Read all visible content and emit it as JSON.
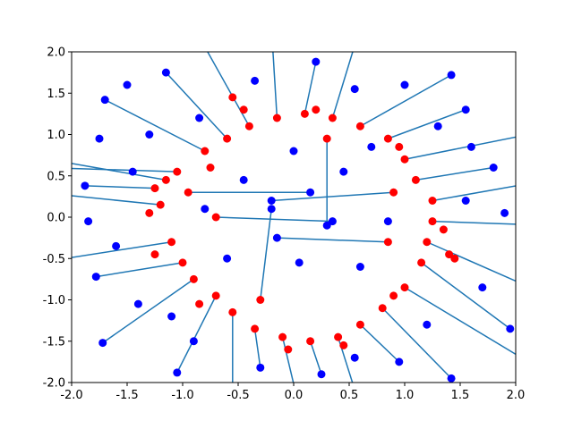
{
  "chart_data": {
    "type": "scatter",
    "title": "",
    "xlabel": "",
    "ylabel": "",
    "xlim": [
      -2.0,
      2.0
    ],
    "ylim": [
      -2.0,
      2.0
    ],
    "grid": false,
    "x_ticks": [
      "-2.0",
      "-1.5",
      "-1.0",
      "-0.5",
      "0.0",
      "0.5",
      "1.0",
      "1.5",
      "2.0"
    ],
    "y_ticks": [
      "-2.0",
      "-1.5",
      "-1.0",
      "-0.5",
      "0.0",
      "0.5",
      "1.0",
      "1.5",
      "2.0"
    ],
    "colors": {
      "lines": "#1f77b4",
      "inner_points": "#ff0000",
      "outer_points": "#0000ff"
    },
    "series": [
      {
        "role": "line-segments from red points to blue points",
        "segments": [
          {
            "from": [
              -1.15,
              0.45
            ],
            "to": [
              -2.3,
              0.72
            ]
          },
          {
            "from": [
              -1.25,
              0.35
            ],
            "to": [
              -1.88,
              0.38
            ]
          },
          {
            "from": [
              -1.05,
              0.55
            ],
            "to": [
              -2.25,
              0.6
            ]
          },
          {
            "from": [
              -1.2,
              0.15
            ],
            "to": [
              -2.3,
              0.3
            ]
          },
          {
            "from": [
              -1.1,
              -0.3
            ],
            "to": [
              -2.3,
              -0.55
            ]
          },
          {
            "from": [
              -1.0,
              -0.55
            ],
            "to": [
              -1.78,
              -0.72
            ]
          },
          {
            "from": [
              -0.9,
              -0.75
            ],
            "to": [
              -1.72,
              -1.52
            ]
          },
          {
            "from": [
              -0.7,
              -0.95
            ],
            "to": [
              -1.05,
              -1.88
            ]
          },
          {
            "from": [
              -0.55,
              -1.15
            ],
            "to": [
              -0.55,
              -2.3
            ]
          },
          {
            "from": [
              -0.35,
              -1.35
            ],
            "to": [
              -0.3,
              -1.82
            ]
          },
          {
            "from": [
              -0.1,
              -1.45
            ],
            "to": [
              0.05,
              -2.3
            ]
          },
          {
            "from": [
              0.15,
              -1.5
            ],
            "to": [
              0.25,
              -1.9
            ]
          },
          {
            "from": [
              0.4,
              -1.45
            ],
            "to": [
              0.6,
              -2.3
            ]
          },
          {
            "from": [
              0.6,
              -1.3
            ],
            "to": [
              0.95,
              -1.75
            ]
          },
          {
            "from": [
              0.8,
              -1.1
            ],
            "to": [
              1.42,
              -1.95
            ]
          },
          {
            "from": [
              1.0,
              -0.85
            ],
            "to": [
              2.3,
              -1.9
            ]
          },
          {
            "from": [
              1.15,
              -0.55
            ],
            "to": [
              1.95,
              -1.35
            ]
          },
          {
            "from": [
              1.2,
              -0.3
            ],
            "to": [
              2.3,
              -0.95
            ]
          },
          {
            "from": [
              1.25,
              -0.05
            ],
            "to": [
              2.3,
              -0.1
            ]
          },
          {
            "from": [
              1.25,
              0.2
            ],
            "to": [
              2.3,
              0.45
            ]
          },
          {
            "from": [
              1.1,
              0.45
            ],
            "to": [
              1.8,
              0.6
            ]
          },
          {
            "from": [
              1.0,
              0.7
            ],
            "to": [
              2.3,
              1.05
            ]
          },
          {
            "from": [
              0.85,
              0.95
            ],
            "to": [
              1.55,
              1.3
            ]
          },
          {
            "from": [
              0.6,
              1.1
            ],
            "to": [
              1.42,
              1.72
            ]
          },
          {
            "from": [
              0.35,
              1.2
            ],
            "to": [
              0.6,
              2.3
            ]
          },
          {
            "from": [
              0.1,
              1.25
            ],
            "to": [
              0.2,
              1.88
            ]
          },
          {
            "from": [
              -0.15,
              1.2
            ],
            "to": [
              -0.2,
              2.3
            ]
          },
          {
            "from": [
              -0.4,
              1.1
            ],
            "to": [
              -0.9,
              2.3
            ]
          },
          {
            "from": [
              -0.6,
              0.95
            ],
            "to": [
              -1.15,
              1.75
            ]
          },
          {
            "from": [
              -0.8,
              0.8
            ],
            "to": [
              -1.7,
              1.42
            ]
          },
          {
            "from": [
              -0.95,
              0.3
            ],
            "to": [
              0.15,
              0.3
            ]
          },
          {
            "from": [
              -0.7,
              0.0
            ],
            "to": [
              0.35,
              -0.05
            ]
          },
          {
            "from": [
              0.9,
              0.3
            ],
            "to": [
              -0.2,
              0.2
            ]
          },
          {
            "from": [
              0.85,
              -0.3
            ],
            "to": [
              -0.15,
              -0.25
            ]
          },
          {
            "from": [
              0.3,
              0.95
            ],
            "to": [
              0.3,
              -0.1
            ]
          },
          {
            "from": [
              -0.3,
              -1.0
            ],
            "to": [
              -0.2,
              0.1
            ]
          }
        ]
      },
      {
        "role": "inner points (red)",
        "points": [
          [
            -1.15,
            0.45
          ],
          [
            -1.25,
            0.35
          ],
          [
            -1.05,
            0.55
          ],
          [
            -1.2,
            0.15
          ],
          [
            -1.1,
            -0.3
          ],
          [
            -1.0,
            -0.55
          ],
          [
            -0.9,
            -0.75
          ],
          [
            -0.7,
            -0.95
          ],
          [
            -0.55,
            -1.15
          ],
          [
            -0.35,
            -1.35
          ],
          [
            -0.1,
            -1.45
          ],
          [
            0.15,
            -1.5
          ],
          [
            0.4,
            -1.45
          ],
          [
            0.6,
            -1.3
          ],
          [
            0.8,
            -1.1
          ],
          [
            1.0,
            -0.85
          ],
          [
            1.15,
            -0.55
          ],
          [
            1.2,
            -0.3
          ],
          [
            1.25,
            -0.05
          ],
          [
            1.25,
            0.2
          ],
          [
            1.1,
            0.45
          ],
          [
            1.0,
            0.7
          ],
          [
            0.85,
            0.95
          ],
          [
            0.6,
            1.1
          ],
          [
            0.35,
            1.2
          ],
          [
            0.1,
            1.25
          ],
          [
            -0.15,
            1.2
          ],
          [
            -0.4,
            1.1
          ],
          [
            -0.6,
            0.95
          ],
          [
            -0.8,
            0.8
          ],
          [
            -0.95,
            0.3
          ],
          [
            -0.7,
            0.0
          ],
          [
            0.9,
            0.3
          ],
          [
            0.85,
            -0.3
          ],
          [
            0.3,
            0.95
          ],
          [
            -0.3,
            -1.0
          ],
          [
            -0.55,
            1.45
          ],
          [
            -0.45,
            1.3
          ],
          [
            0.2,
            1.3
          ],
          [
            0.95,
            0.85
          ],
          [
            1.35,
            -0.15
          ],
          [
            1.45,
            -0.5
          ],
          [
            1.4,
            -0.45
          ],
          [
            -1.25,
            -0.45
          ],
          [
            -0.85,
            -1.05
          ],
          [
            -0.05,
            -1.6
          ],
          [
            0.45,
            -1.55
          ],
          [
            0.9,
            -0.95
          ],
          [
            -1.3,
            0.05
          ],
          [
            -0.75,
            0.6
          ]
        ]
      },
      {
        "role": "outer points (blue)",
        "points": [
          [
            -1.88,
            0.38
          ],
          [
            -1.78,
            -0.72
          ],
          [
            -1.72,
            -1.52
          ],
          [
            -1.05,
            -1.88
          ],
          [
            -0.3,
            -1.82
          ],
          [
            0.25,
            -1.9
          ],
          [
            0.95,
            -1.75
          ],
          [
            1.42,
            -1.95
          ],
          [
            1.95,
            -1.35
          ],
          [
            1.8,
            0.6
          ],
          [
            1.55,
            1.3
          ],
          [
            1.42,
            1.72
          ],
          [
            0.2,
            1.88
          ],
          [
            -1.15,
            1.75
          ],
          [
            -1.7,
            1.42
          ],
          [
            0.15,
            0.3
          ],
          [
            0.35,
            -0.05
          ],
          [
            -0.2,
            0.2
          ],
          [
            -0.15,
            -0.25
          ],
          [
            0.3,
            -0.1
          ],
          [
            -0.2,
            0.1
          ],
          [
            -1.5,
            1.6
          ],
          [
            -1.45,
            0.55
          ],
          [
            -1.6,
            -0.35
          ],
          [
            -1.4,
            -1.05
          ],
          [
            -0.9,
            -1.5
          ],
          [
            0.55,
            -1.7
          ],
          [
            1.2,
            -1.3
          ],
          [
            1.7,
            -0.85
          ],
          [
            1.9,
            0.05
          ],
          [
            1.6,
            0.85
          ],
          [
            1.0,
            1.6
          ],
          [
            0.55,
            1.55
          ],
          [
            -0.35,
            1.65
          ],
          [
            -0.85,
            1.2
          ],
          [
            -1.3,
            1.0
          ],
          [
            -1.75,
            0.95
          ],
          [
            -1.85,
            -0.05
          ],
          [
            1.55,
            0.2
          ],
          [
            0.7,
            0.85
          ],
          [
            -0.6,
            -0.5
          ],
          [
            0.6,
            -0.6
          ],
          [
            -0.45,
            0.45
          ],
          [
            0.45,
            0.55
          ],
          [
            0.05,
            -0.55
          ],
          [
            -0.8,
            0.1
          ],
          [
            0.85,
            -0.05
          ],
          [
            1.3,
            1.1
          ],
          [
            -1.1,
            -1.2
          ],
          [
            0.0,
            0.8
          ]
        ]
      }
    ]
  }
}
